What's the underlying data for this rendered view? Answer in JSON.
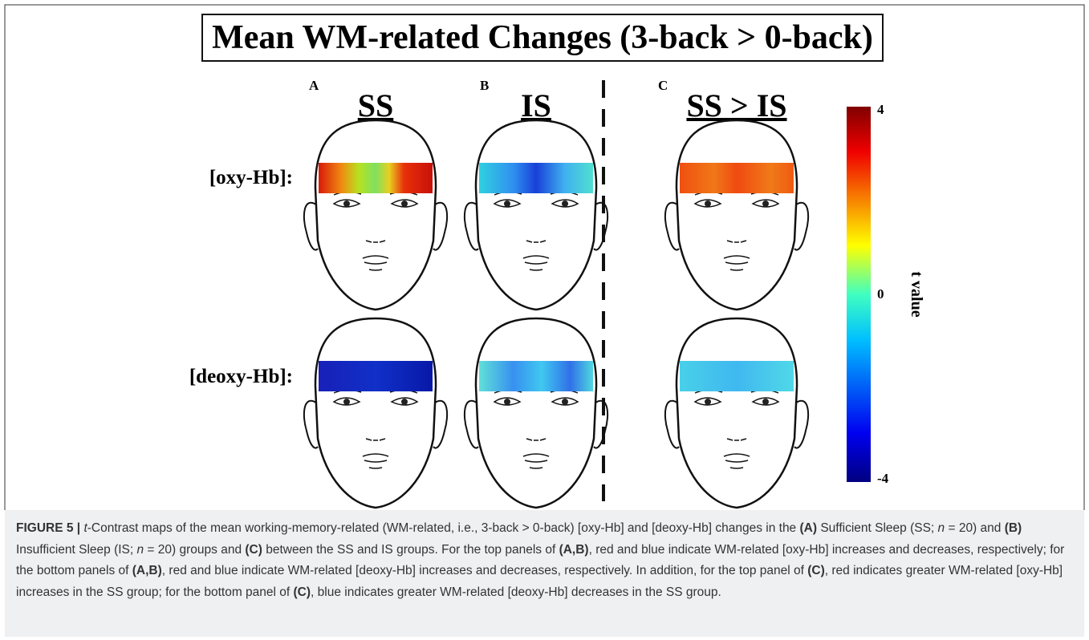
{
  "title": "Mean WM-related Changes (3-back > 0-back)",
  "panels": [
    {
      "letter": "A",
      "heading": "SS"
    },
    {
      "letter": "B",
      "heading": "IS"
    },
    {
      "letter": "C",
      "heading": "SS > IS"
    }
  ],
  "rows": [
    "[oxy-Hb]:",
    "[deoxy-Hb]:"
  ],
  "colorbar": {
    "label": "t value",
    "ticks": [
      "4",
      "0",
      "-4"
    ]
  },
  "caption": {
    "runs": [
      {
        "text": "FIGURE 5 | ",
        "style": "bold"
      },
      {
        "text": "t",
        "style": "italic"
      },
      {
        "text": "-Contrast maps of the mean working-memory-related (WM-related, i.e., 3-back > 0-back) [oxy-Hb] and [deoxy-Hb] changes in the ",
        "style": "normal"
      },
      {
        "text": "(A)",
        "style": "bold"
      },
      {
        "text": " Sufficient Sleep (SS; ",
        "style": "normal"
      },
      {
        "text": "n",
        "style": "italic"
      },
      {
        "text": " = 20) and ",
        "style": "normal"
      },
      {
        "text": "(B)",
        "style": "bold"
      },
      {
        "text": " Insufficient Sleep (IS; ",
        "style": "normal"
      },
      {
        "text": "n",
        "style": "italic"
      },
      {
        "text": " = 20) groups and ",
        "style": "normal"
      },
      {
        "text": "(C)",
        "style": "bold"
      },
      {
        "text": " between the SS and IS groups. For the top panels of ",
        "style": "normal"
      },
      {
        "text": "(A,B)",
        "style": "bold"
      },
      {
        "text": ", red and blue indicate WM-related [oxy-Hb] increases and decreases, respectively; for the bottom panels of ",
        "style": "normal"
      },
      {
        "text": "(A,B)",
        "style": "bold"
      },
      {
        "text": ", red and blue indicate WM-related [deoxy-Hb] increases and decreases, respectively. In addition, for the top panel of ",
        "style": "normal"
      },
      {
        "text": "(C)",
        "style": "bold"
      },
      {
        "text": ", red indicates greater WM-related [oxy-Hb] increases in the SS group; for the bottom panel of ",
        "style": "normal"
      },
      {
        "text": "(C)",
        "style": "bold"
      },
      {
        "text": ", blue indicates greater WM-related [deoxy-Hb] decreases in the SS group.",
        "style": "normal"
      }
    ]
  }
}
